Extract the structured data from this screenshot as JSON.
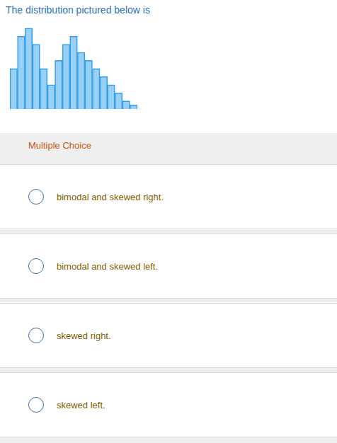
{
  "chart_data": {
    "type": "bar",
    "title": "The distribution pictured below is",
    "categories": [
      null,
      null,
      null,
      null,
      null,
      null,
      null,
      null,
      null,
      null,
      null,
      null,
      null,
      null,
      null,
      null,
      null
    ],
    "values": [
      5,
      9,
      10,
      8,
      5,
      3,
      6,
      8,
      9,
      7,
      6,
      5,
      4,
      3,
      2,
      1,
      0.5
    ],
    "ylim": [
      0,
      10.5
    ],
    "tick_labels": false,
    "grid": false,
    "annotations": [
      "Multiple Choice",
      "bimodal and skewed right.",
      "bimodal and skewed left.",
      "skewed right.",
      "skewed left."
    ]
  }
}
